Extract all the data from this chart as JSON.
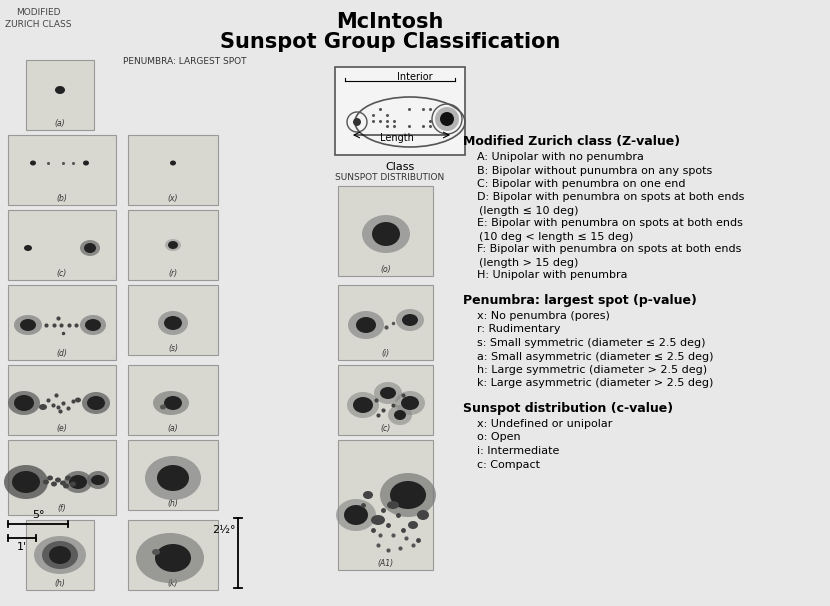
{
  "title_line1": "McIntosh",
  "title_line2": "Sunspot Group Classification",
  "bg_color": "#f0f0f0",
  "label_top_left": "MODIFIED\nZURICH CLASS",
  "label_penumbra": "PENUMBRA: LARGEST SPOT",
  "label_sunspot_dist": "SUNSPOT DISTRIBUTION",
  "label_interior": "Interior",
  "label_length": "Length",
  "label_class": "Class",
  "scale_5deg": "5°",
  "scale_1arcmin": "1'",
  "scale_2half_deg": "2½°",
  "zurich_header": "Modified Zurich class (Z-value)",
  "zurich_items": [
    "A: Unipolar with no penumbra",
    "B: Bipolar without punumbra on any spots",
    "C: Bipolar with penumbra on one end",
    "D: Bipolar with penumbra on spots at both ends",
    "   (length ≤ 10 deg)",
    "E: Bipolar with penumbra on spots at both ends",
    "   (10 deg < length ≤ 15 deg)",
    "F: Bipolar with penumbra on spots at both ends",
    "   (length > 15 deg)",
    "H: Unipolar with penumbra"
  ],
  "penumbra_header": "Penumbra: largest spot (p-value)",
  "penumbra_items": [
    "x: No penumbra (pores)",
    "r: Rudimentary",
    "s: Small symmetric (diameter ≤ 2.5 deg)",
    "a: Small asymmetric (diameter ≤ 2.5 deg)",
    "h: Large symmetric (diameter > 2.5 deg)",
    "k: Large asymmetric (diameter > 2.5 deg)"
  ],
  "sunspot_dist_header": "Sunspot distribution (c-value)",
  "sunspot_dist_items": [
    "x: Undefined or unipolar",
    "o: Open",
    "i: Intermediate",
    "c: Compact"
  ]
}
